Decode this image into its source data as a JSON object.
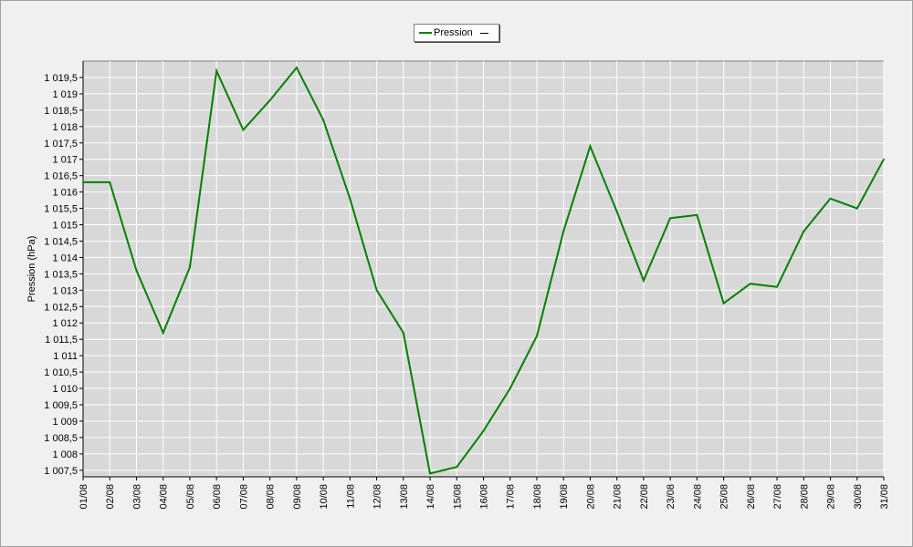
{
  "chart_data": {
    "type": "line",
    "ylabel": "Pression (hPa)",
    "ylim": [
      1007.3,
      1020.0
    ],
    "legend": {
      "position": "top-center",
      "entries": [
        "Pression"
      ]
    },
    "grid": true,
    "colors": {
      "series": "#008000",
      "plot_bg": "#d8d8d8",
      "grid": "#ffffff"
    },
    "x": [
      "01/08",
      "02/08",
      "03/08",
      "04/08",
      "05/08",
      "06/08",
      "07/08",
      "08/08",
      "09/08",
      "10/08",
      "11/08",
      "12/08",
      "13/08",
      "14/08",
      "15/08",
      "16/08",
      "17/08",
      "18/08",
      "19/08",
      "20/08",
      "21/08",
      "22/08",
      "23/08",
      "24/08",
      "25/08",
      "26/08",
      "27/08",
      "28/08",
      "29/08",
      "30/08",
      "31/08"
    ],
    "y_ticks": [
      1007.5,
      1008,
      1008.5,
      1009,
      1009.5,
      1010,
      1010.5,
      1011,
      1011.5,
      1012,
      1012.5,
      1013,
      1013.5,
      1014,
      1014.5,
      1015,
      1015.5,
      1016,
      1016.5,
      1017,
      1017.5,
      1018,
      1018.5,
      1019,
      1019.5
    ],
    "y_tick_labels": [
      "1 007,5",
      "1 008",
      "1 008,5",
      "1 009",
      "1 009,5",
      "1 010",
      "1 010,5",
      "1 011",
      "1 011,5",
      "1 012",
      "1 012,5",
      "1 013",
      "1 013,5",
      "1 014",
      "1 014,5",
      "1 015",
      "1 015,5",
      "1 016",
      "1 016,5",
      "1 017",
      "1 017,5",
      "1 018",
      "1 018,5",
      "1 019",
      "1 019,5"
    ],
    "series": [
      {
        "name": "Pression",
        "values": [
          1016.3,
          1016.3,
          1013.6,
          1011.7,
          1013.7,
          1019.7,
          1017.9,
          1018.8,
          1019.8,
          1018.2,
          1015.8,
          1013.0,
          1011.7,
          1007.4,
          1007.6,
          1008.7,
          1010.0,
          1011.6,
          1014.8,
          1017.4,
          1015.4,
          1013.3,
          1015.2,
          1015.3,
          1012.6,
          1013.2,
          1013.1,
          1014.8,
          1015.8,
          1015.5,
          1017.0
        ]
      }
    ]
  }
}
